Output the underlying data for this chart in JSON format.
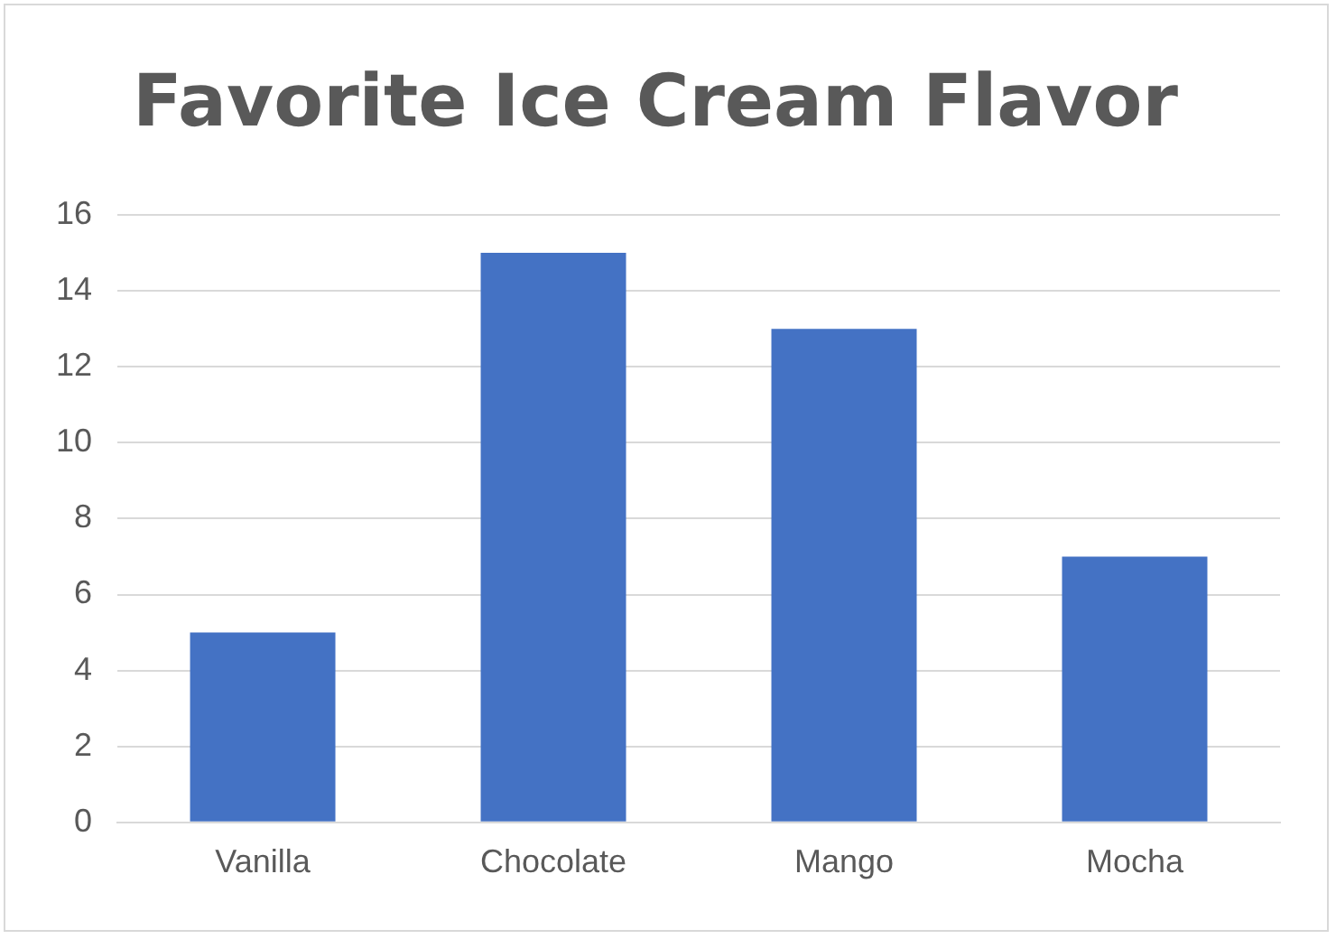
{
  "chart_data": {
    "type": "bar",
    "title": "Favorite Ice Cream Flavor",
    "categories": [
      "Vanilla",
      "Chocolate",
      "Mango",
      "Mocha"
    ],
    "values": [
      5,
      15,
      13,
      7
    ],
    "color": "#4472c4",
    "ylim": [
      0,
      16
    ],
    "yticks": [
      0,
      2,
      4,
      6,
      8,
      10,
      12,
      14,
      16
    ],
    "grid": "y",
    "legend": false
  }
}
